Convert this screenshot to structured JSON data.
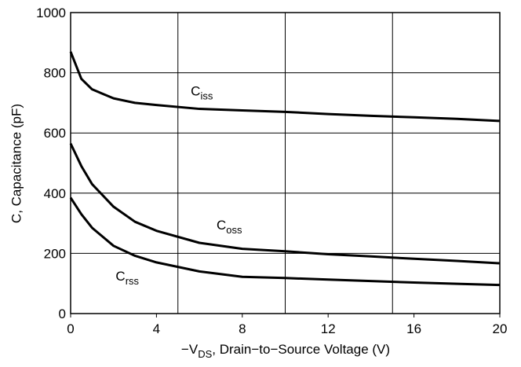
{
  "chart_data": {
    "type": "line",
    "x": [
      0,
      0.5,
      1,
      2,
      3,
      4,
      6,
      8,
      10,
      12,
      14,
      16,
      18,
      20
    ],
    "series": [
      {
        "label": "C",
        "label_sub": "iss",
        "label_x": 5.6,
        "label_y": 725,
        "color": "#000000",
        "values": [
          870,
          780,
          745,
          715,
          700,
          693,
          680,
          675,
          670,
          663,
          657,
          652,
          647,
          640
        ]
      },
      {
        "label": "C",
        "label_sub": "oss",
        "label_x": 6.8,
        "label_y": 280,
        "color": "#000000",
        "values": [
          565,
          490,
          430,
          355,
          305,
          275,
          235,
          215,
          207,
          197,
          190,
          182,
          175,
          167
        ]
      },
      {
        "label": "C",
        "label_sub": "rss",
        "label_x": 2.1,
        "label_y": 110,
        "color": "#000000",
        "values": [
          385,
          330,
          285,
          225,
          192,
          170,
          140,
          122,
          118,
          113,
          108,
          103,
          99,
          95
        ]
      }
    ],
    "xlim": [
      0,
      20
    ],
    "xticks": [
      0,
      4,
      8,
      12,
      16,
      20
    ],
    "xgrid": [
      5,
      10,
      15
    ],
    "ylim": [
      0,
      1000
    ],
    "yticks": [
      0,
      200,
      400,
      600,
      800,
      1000
    ],
    "grid": true,
    "xlabel": {
      "pre": "−V",
      "sub": "DS",
      "post": ", Drain−to−Source Voltage (V)"
    },
    "ylabel": "C, Capacitance (pF)"
  }
}
